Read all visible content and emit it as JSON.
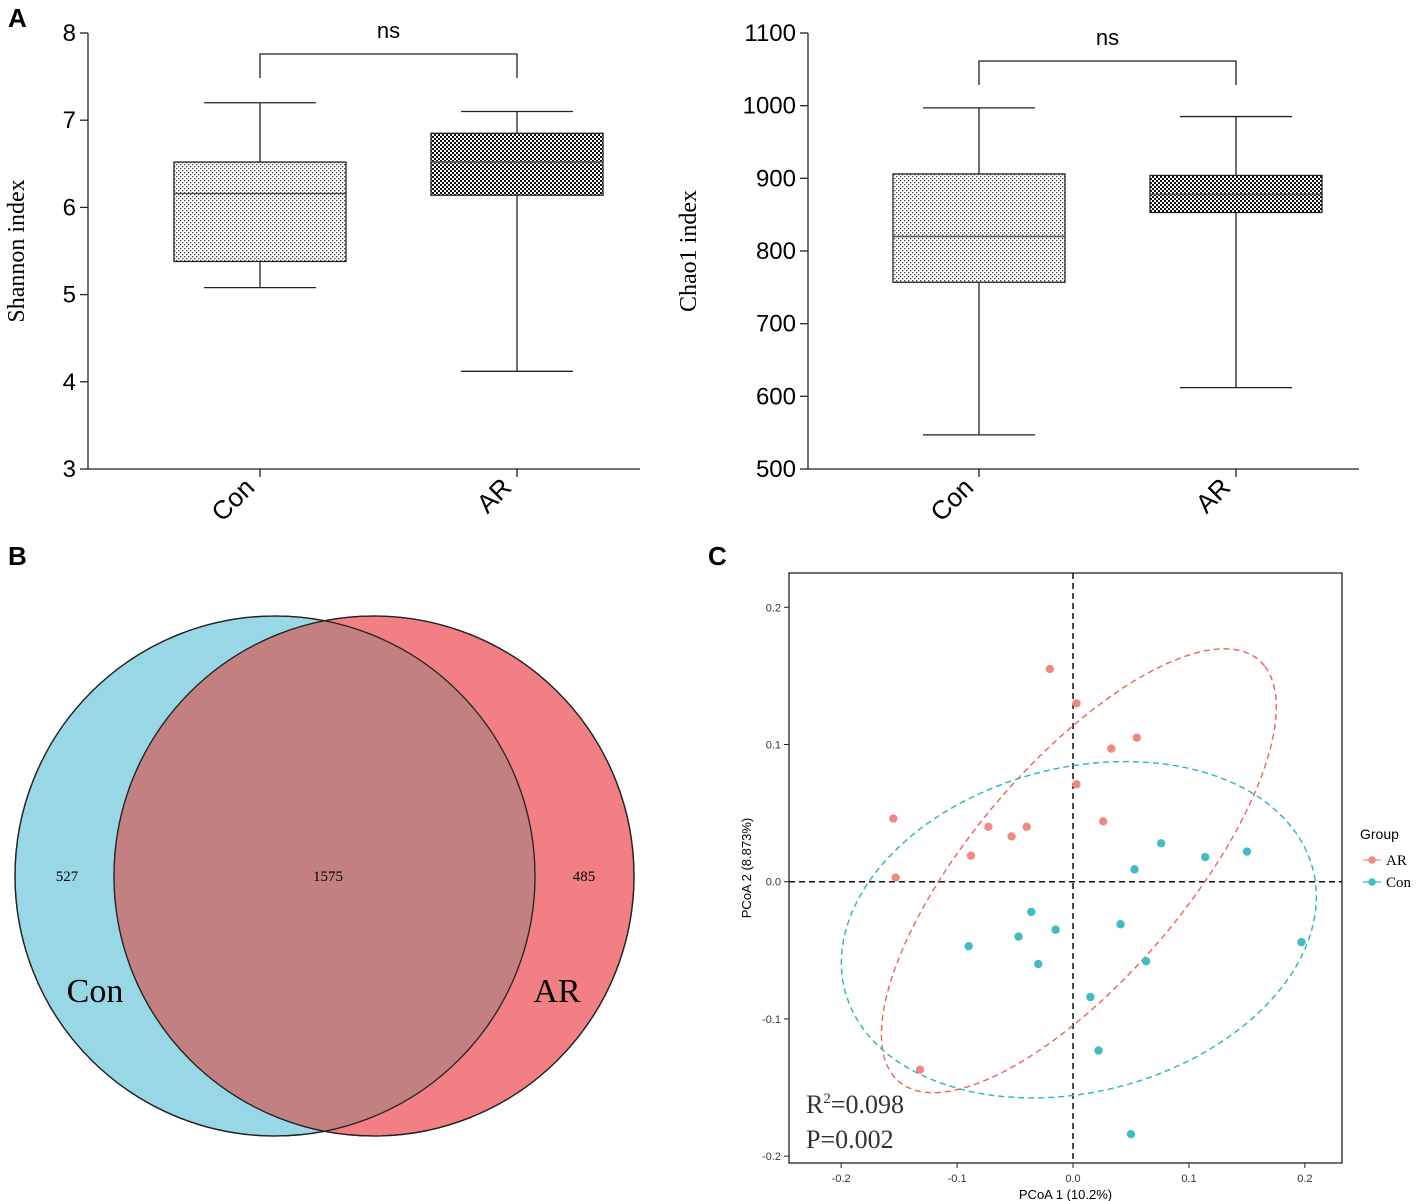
{
  "panels": {
    "A": {
      "label": "A"
    },
    "B": {
      "label": "B"
    },
    "C": {
      "label": "C"
    }
  },
  "colors": {
    "venn_con": "#98d7e6",
    "venn_ar": "#f27f83",
    "venn_overlap": "#c38081",
    "pcoa_ar": "#f08a80",
    "pcoa_con": "#3fbcc4",
    "ellipse_ar": "#f0605a",
    "ellipse_con": "#29b5c0"
  },
  "chart_data": [
    {
      "type": "box",
      "id": "shannon",
      "ylabel": "Shannon index",
      "ylim": [
        3,
        8
      ],
      "yticks": [
        "3",
        "4",
        "5",
        "6",
        "7",
        "8"
      ],
      "categories": [
        "Con",
        "AR"
      ],
      "boxes": [
        {
          "name": "Con",
          "min": 5.08,
          "q1": 5.38,
          "median": 6.16,
          "q3": 6.52,
          "max": 7.2,
          "pattern": "light-dots"
        },
        {
          "name": "AR",
          "min": 4.12,
          "q1": 6.14,
          "median": 6.52,
          "q3": 6.85,
          "max": 7.1,
          "pattern": "checker"
        }
      ],
      "significance": "ns"
    },
    {
      "type": "box",
      "id": "chao1",
      "ylabel": "Chao1 index",
      "ylim": [
        500,
        1100
      ],
      "yticks": [
        "500",
        "600",
        "700",
        "800",
        "900",
        "1000",
        "1100"
      ],
      "categories": [
        "Con",
        "AR"
      ],
      "boxes": [
        {
          "name": "Con",
          "min": 547,
          "q1": 757,
          "median": 820,
          "q3": 906,
          "max": 997,
          "pattern": "light-dots"
        },
        {
          "name": "AR",
          "min": 612,
          "q1": 853,
          "median": 878,
          "q3": 904,
          "max": 985,
          "pattern": "checker"
        }
      ],
      "significance": "ns"
    },
    {
      "type": "venn",
      "id": "venn",
      "sets": [
        {
          "name": "Con",
          "unique": "527"
        },
        {
          "name": "AR",
          "unique": "485"
        }
      ],
      "shared": "1575"
    },
    {
      "type": "scatter",
      "id": "pcoa",
      "xlabel": "PCoA 1 (10.2%)",
      "ylabel": "PCoA 2 (8.873%)",
      "xlim": [
        -0.245,
        0.232
      ],
      "ylim": [
        -0.205,
        0.225
      ],
      "xticks": [
        {
          "v": -0.2,
          "t": "-0.2"
        },
        {
          "v": -0.1,
          "t": "-0.1"
        },
        {
          "v": 0.0,
          "t": "0.0"
        },
        {
          "v": 0.1,
          "t": "0.1"
        },
        {
          "v": 0.2,
          "t": "0.2"
        }
      ],
      "yticks": [
        {
          "v": -0.2,
          "t": "-0.2"
        },
        {
          "v": -0.1,
          "t": "-0.1"
        },
        {
          "v": 0.0,
          "t": "0.0"
        },
        {
          "v": 0.1,
          "t": "0.1"
        },
        {
          "v": 0.2,
          "t": "0.2"
        }
      ],
      "legend_title": "Group",
      "legend_position": "right",
      "series": [
        {
          "name": "AR",
          "points": [
            [
              -0.02,
              0.155
            ],
            [
              0.003,
              0.13
            ],
            [
              0.055,
              0.105
            ],
            [
              0.033,
              0.097
            ],
            [
              0.003,
              0.071
            ],
            [
              0.026,
              0.044
            ],
            [
              -0.155,
              0.046
            ],
            [
              -0.073,
              0.04
            ],
            [
              -0.04,
              0.04
            ],
            [
              -0.053,
              0.033
            ],
            [
              -0.088,
              0.019
            ],
            [
              -0.153,
              0.003
            ],
            [
              -0.132,
              -0.137
            ]
          ],
          "ellipse": {
            "cx": 0.005,
            "cy": 0.008,
            "a": 0.219,
            "b": 0.085,
            "angle_deg": 43
          }
        },
        {
          "name": "Con",
          "points": [
            [
              0.076,
              0.028
            ],
            [
              0.15,
              0.022
            ],
            [
              0.114,
              0.018
            ],
            [
              0.053,
              0.009
            ],
            [
              -0.036,
              -0.022
            ],
            [
              0.041,
              -0.031
            ],
            [
              -0.015,
              -0.035
            ],
            [
              -0.047,
              -0.04
            ],
            [
              -0.09,
              -0.047
            ],
            [
              -0.03,
              -0.06
            ],
            [
              0.063,
              -0.058
            ],
            [
              0.015,
              -0.084
            ],
            [
              0.022,
              -0.123
            ],
            [
              0.197,
              -0.044
            ],
            [
              0.05,
              -0.184
            ]
          ],
          "ellipse": {
            "cx": 0.005,
            "cy": -0.035,
            "a": 0.207,
            "b": 0.119,
            "angle_deg": 10
          }
        }
      ],
      "stats": {
        "r2_prefix": "R",
        "r2_sup": "2",
        "r2_value": "=0.098",
        "p_text": "P=0.002"
      }
    }
  ]
}
